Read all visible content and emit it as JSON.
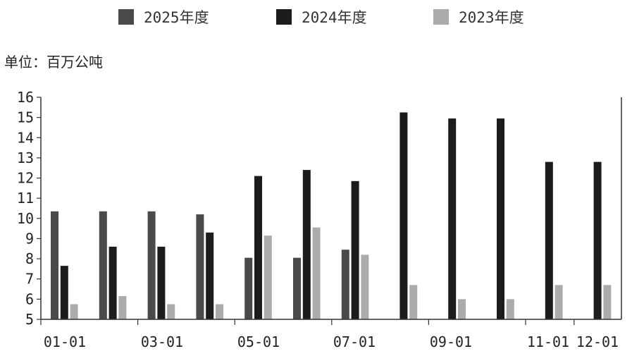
{
  "legend": [
    {
      "label": "2025年度",
      "color": "#4a4a4a"
    },
    {
      "label": "2024年度",
      "color": "#1c1c1c"
    },
    {
      "label": "2023年度",
      "color": "#ababab"
    }
  ],
  "unit_label": "单位：百万公吨",
  "chart_data": {
    "type": "bar",
    "x_tick_labels": [
      "01-01",
      "03-01",
      "05-01",
      "07-01",
      "09-01",
      "11-01",
      "12-01"
    ],
    "categories": [
      "01",
      "02",
      "03",
      "04",
      "05",
      "06",
      "07",
      "08",
      "09",
      "10",
      "11",
      "12"
    ],
    "series": [
      {
        "name": "2025年度",
        "color": "#4a4a4a",
        "values": [
          10.35,
          10.35,
          10.35,
          10.2,
          8.05,
          8.05,
          8.45,
          null,
          null,
          null,
          null,
          null
        ]
      },
      {
        "name": "2024年度",
        "color": "#1c1c1c",
        "values": [
          7.65,
          8.6,
          8.6,
          9.3,
          12.1,
          12.4,
          11.85,
          15.25,
          14.95,
          14.95,
          12.8,
          12.8
        ]
      },
      {
        "name": "2023年度",
        "color": "#ababab",
        "values": [
          5.75,
          6.15,
          5.75,
          5.75,
          9.15,
          9.55,
          8.2,
          6.7,
          6.0,
          6.0,
          6.7,
          6.7
        ]
      }
    ],
    "ylim": [
      5,
      16
    ],
    "yticks": [
      5,
      6,
      7,
      8,
      9,
      10,
      11,
      12,
      13,
      14,
      15,
      16
    ],
    "grid": false,
    "legend_position": "top"
  }
}
